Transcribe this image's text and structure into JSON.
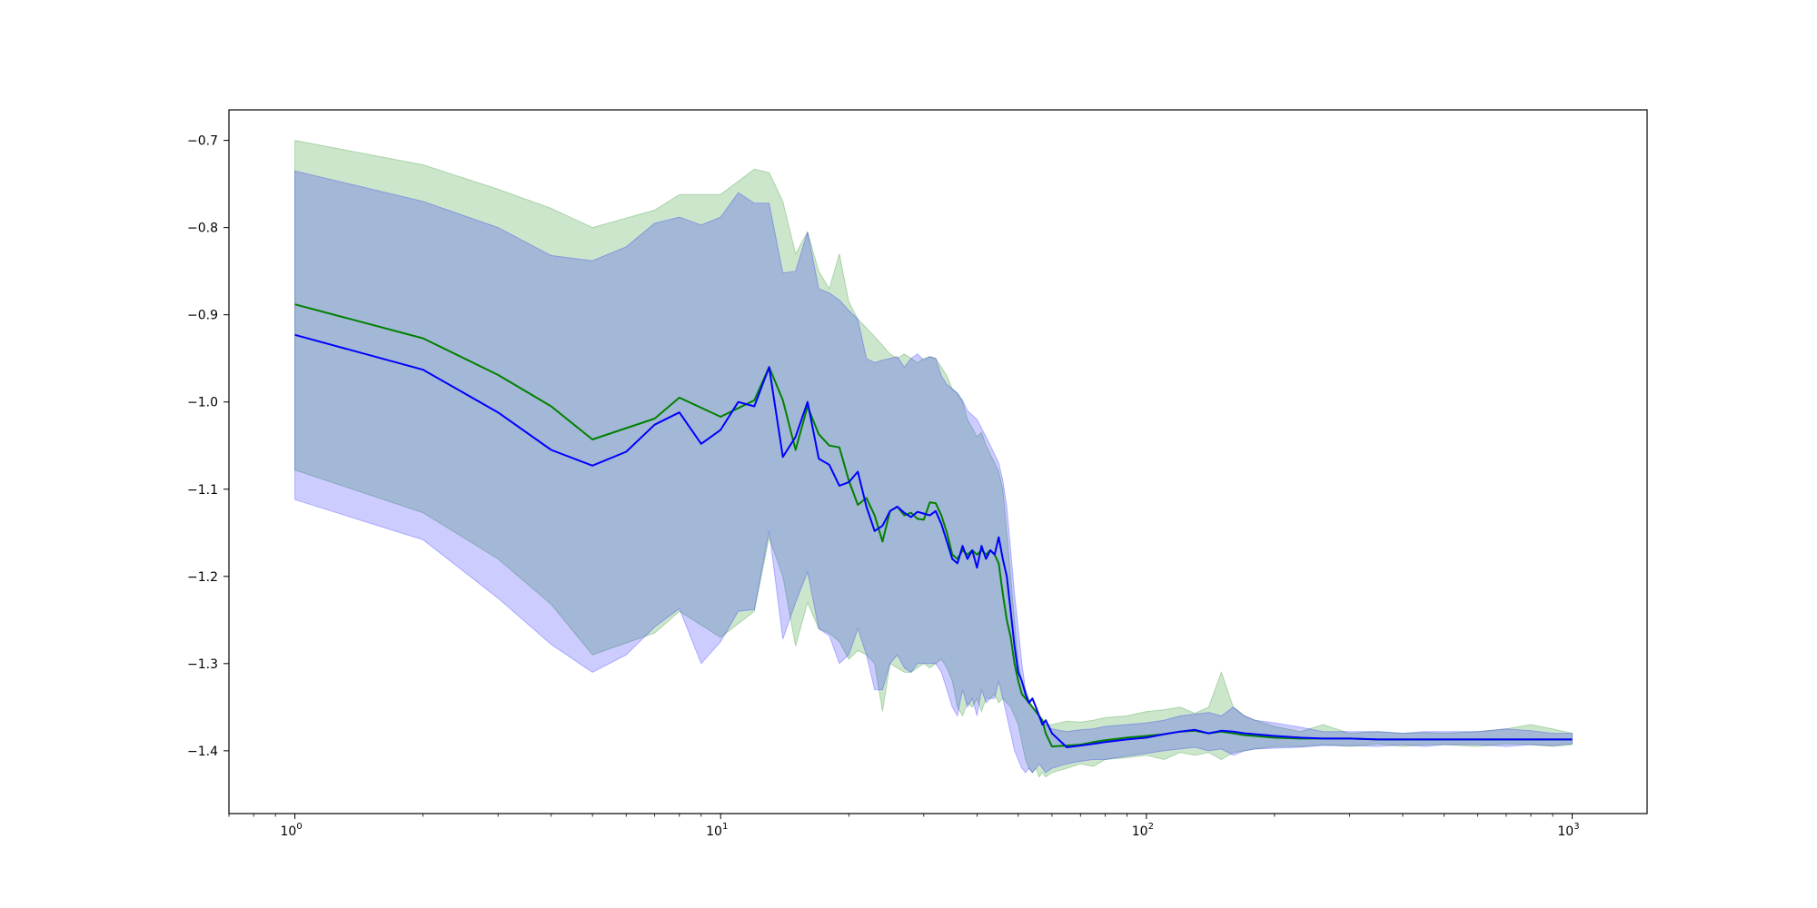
{
  "chart_data": {
    "type": "line",
    "title": "",
    "xlabel": "",
    "ylabel": "",
    "x_scale": "log",
    "xlim": [
      0.7,
      1500
    ],
    "ylim": [
      -1.472,
      -0.665
    ],
    "grid": false,
    "legend": "none",
    "x_ticks": [
      {
        "value": 1,
        "base": "10",
        "exp": "0"
      },
      {
        "value": 10,
        "base": "10",
        "exp": "1"
      },
      {
        "value": 100,
        "base": "10",
        "exp": "2"
      },
      {
        "value": 1000,
        "base": "10",
        "exp": "3"
      }
    ],
    "y_ticks": [
      {
        "value": -0.7,
        "label": "−0.7"
      },
      {
        "value": -0.8,
        "label": "−0.8"
      },
      {
        "value": -0.9,
        "label": "−0.9"
      },
      {
        "value": -1.0,
        "label": "−1.0"
      },
      {
        "value": -1.1,
        "label": "−1.1"
      },
      {
        "value": -1.2,
        "label": "−1.2"
      },
      {
        "value": -1.3,
        "label": "−1.3"
      },
      {
        "value": -1.4,
        "label": "−1.4"
      }
    ],
    "series": [
      {
        "color": "#008000",
        "band_color": "#008000",
        "band_opacity": 0.2,
        "x": [
          1,
          2,
          3,
          4,
          5,
          7,
          8,
          10,
          12,
          13,
          14,
          15,
          16,
          17,
          18,
          19,
          20,
          21,
          22,
          23,
          24,
          25,
          26,
          27,
          28,
          29,
          30,
          31,
          32,
          33,
          34,
          35,
          36,
          37,
          38,
          39,
          40,
          41,
          42,
          43,
          44,
          45,
          46,
          47,
          48,
          49,
          50,
          51,
          52,
          53,
          54,
          55,
          56,
          57,
          58,
          60,
          65,
          70,
          75,
          80,
          90,
          100,
          110,
          120,
          130,
          140,
          150,
          160,
          170,
          180,
          200,
          230,
          260,
          300,
          350,
          400,
          450,
          500,
          600,
          700,
          800,
          900,
          1000
        ],
        "y": [
          -0.888,
          -0.927,
          -0.969,
          -1.005,
          -1.043,
          -1.019,
          -0.995,
          -1.017,
          -0.998,
          -0.96,
          -0.998,
          -1.055,
          -1.005,
          -1.037,
          -1.05,
          -1.052,
          -1.09,
          -1.118,
          -1.11,
          -1.13,
          -1.16,
          -1.125,
          -1.12,
          -1.13,
          -1.127,
          -1.134,
          -1.135,
          -1.115,
          -1.116,
          -1.13,
          -1.15,
          -1.175,
          -1.18,
          -1.17,
          -1.175,
          -1.17,
          -1.175,
          -1.17,
          -1.175,
          -1.17,
          -1.175,
          -1.185,
          -1.22,
          -1.25,
          -1.27,
          -1.3,
          -1.32,
          -1.335,
          -1.34,
          -1.345,
          -1.35,
          -1.355,
          -1.36,
          -1.365,
          -1.38,
          -1.395,
          -1.394,
          -1.393,
          -1.39,
          -1.388,
          -1.385,
          -1.383,
          -1.381,
          -1.378,
          -1.377,
          -1.38,
          -1.378,
          -1.38,
          -1.382,
          -1.383,
          -1.385,
          -1.386,
          -1.386,
          -1.386,
          -1.387,
          -1.387,
          -1.387,
          -1.387,
          -1.387,
          -1.387,
          -1.387,
          -1.387,
          -1.387
        ],
        "upper": [
          -0.7,
          -0.728,
          -0.756,
          -0.778,
          -0.8,
          -0.78,
          -0.762,
          -0.762,
          -0.733,
          -0.737,
          -0.77,
          -0.83,
          -0.805,
          -0.85,
          -0.87,
          -0.83,
          -0.885,
          -0.905,
          -0.915,
          -0.925,
          -0.935,
          -0.945,
          -0.95,
          -0.945,
          -0.95,
          -0.955,
          -0.95,
          -0.948,
          -0.95,
          -0.96,
          -0.97,
          -0.985,
          -0.99,
          -1.0,
          -1.02,
          -1.03,
          -1.04,
          -1.035,
          -1.05,
          -1.06,
          -1.07,
          -1.08,
          -1.1,
          -1.15,
          -1.2,
          -1.25,
          -1.3,
          -1.32,
          -1.33,
          -1.34,
          -1.35,
          -1.355,
          -1.36,
          -1.365,
          -1.37,
          -1.37,
          -1.366,
          -1.367,
          -1.365,
          -1.362,
          -1.36,
          -1.355,
          -1.353,
          -1.35,
          -1.357,
          -1.35,
          -1.31,
          -1.35,
          -1.36,
          -1.365,
          -1.372,
          -1.378,
          -1.37,
          -1.38,
          -1.378,
          -1.38,
          -1.379,
          -1.38,
          -1.378,
          -1.375,
          -1.37,
          -1.375,
          -1.38
        ],
        "lower": [
          -1.078,
          -1.127,
          -1.18,
          -1.232,
          -1.29,
          -1.265,
          -1.24,
          -1.27,
          -1.24,
          -1.155,
          -1.2,
          -1.28,
          -1.23,
          -1.26,
          -1.265,
          -1.275,
          -1.295,
          -1.285,
          -1.29,
          -1.3,
          -1.355,
          -1.3,
          -1.305,
          -1.31,
          -1.31,
          -1.305,
          -1.3,
          -1.305,
          -1.3,
          -1.295,
          -1.305,
          -1.32,
          -1.35,
          -1.36,
          -1.345,
          -1.35,
          -1.34,
          -1.355,
          -1.34,
          -1.34,
          -1.335,
          -1.345,
          -1.34,
          -1.345,
          -1.35,
          -1.36,
          -1.37,
          -1.39,
          -1.41,
          -1.42,
          -1.425,
          -1.42,
          -1.43,
          -1.425,
          -1.43,
          -1.425,
          -1.42,
          -1.415,
          -1.418,
          -1.41,
          -1.408,
          -1.405,
          -1.41,
          -1.402,
          -1.405,
          -1.402,
          -1.41,
          -1.402,
          -1.4,
          -1.398,
          -1.395,
          -1.395,
          -1.393,
          -1.395,
          -1.392,
          -1.395,
          -1.393,
          -1.393,
          -1.395,
          -1.392,
          -1.393,
          -1.395,
          -1.393
        ]
      },
      {
        "color": "#0000ff",
        "band_color": "#0000ff",
        "band_opacity": 0.2,
        "x": [
          1,
          2,
          3,
          4,
          5,
          6,
          7,
          8,
          9,
          10,
          11,
          12,
          13,
          14,
          15,
          16,
          17,
          18,
          19,
          20,
          21,
          22,
          23,
          24,
          25,
          26,
          27,
          28,
          29,
          30,
          31,
          32,
          33,
          34,
          35,
          36,
          37,
          38,
          39,
          40,
          41,
          42,
          43,
          44,
          45,
          46,
          47,
          48,
          49,
          50,
          51,
          52,
          53,
          54,
          55,
          56,
          57,
          58,
          60,
          65,
          70,
          75,
          80,
          90,
          100,
          110,
          120,
          130,
          140,
          150,
          160,
          170,
          180,
          200,
          230,
          260,
          300,
          350,
          400,
          450,
          500,
          600,
          700,
          800,
          900,
          1000
        ],
        "y": [
          -0.923,
          -0.963,
          -1.012,
          -1.055,
          -1.073,
          -1.057,
          -1.026,
          -1.012,
          -1.048,
          -1.032,
          -1.0,
          -1.005,
          -0.96,
          -1.063,
          -1.04,
          -1.0,
          -1.065,
          -1.072,
          -1.096,
          -1.092,
          -1.08,
          -1.12,
          -1.148,
          -1.142,
          -1.125,
          -1.12,
          -1.127,
          -1.132,
          -1.126,
          -1.128,
          -1.13,
          -1.125,
          -1.14,
          -1.16,
          -1.18,
          -1.185,
          -1.165,
          -1.18,
          -1.17,
          -1.19,
          -1.165,
          -1.18,
          -1.17,
          -1.175,
          -1.155,
          -1.18,
          -1.2,
          -1.24,
          -1.28,
          -1.31,
          -1.32,
          -1.335,
          -1.345,
          -1.34,
          -1.35,
          -1.36,
          -1.37,
          -1.365,
          -1.38,
          -1.396,
          -1.394,
          -1.392,
          -1.39,
          -1.387,
          -1.385,
          -1.381,
          -1.378,
          -1.376,
          -1.38,
          -1.377,
          -1.378,
          -1.38,
          -1.381,
          -1.383,
          -1.385,
          -1.386,
          -1.386,
          -1.387,
          -1.387,
          -1.387,
          -1.387,
          -1.387,
          -1.387,
          -1.387,
          -1.387,
          -1.387
        ],
        "upper": [
          -0.735,
          -0.77,
          -0.8,
          -0.832,
          -0.838,
          -0.822,
          -0.795,
          -0.788,
          -0.797,
          -0.788,
          -0.76,
          -0.772,
          -0.772,
          -0.852,
          -0.85,
          -0.805,
          -0.87,
          -0.875,
          -0.883,
          -0.895,
          -0.905,
          -0.95,
          -0.955,
          -0.952,
          -0.95,
          -0.948,
          -0.96,
          -0.95,
          -0.945,
          -0.952,
          -0.948,
          -0.95,
          -0.97,
          -0.98,
          -0.985,
          -0.99,
          -0.998,
          -1.01,
          -1.015,
          -1.02,
          -1.03,
          -1.04,
          -1.05,
          -1.06,
          -1.07,
          -1.09,
          -1.12,
          -1.17,
          -1.22,
          -1.26,
          -1.3,
          -1.33,
          -1.345,
          -1.35,
          -1.355,
          -1.36,
          -1.365,
          -1.37,
          -1.375,
          -1.378,
          -1.376,
          -1.375,
          -1.372,
          -1.37,
          -1.368,
          -1.365,
          -1.36,
          -1.358,
          -1.356,
          -1.36,
          -1.35,
          -1.36,
          -1.365,
          -1.368,
          -1.373,
          -1.378,
          -1.378,
          -1.378,
          -1.38,
          -1.378,
          -1.378,
          -1.378,
          -1.375,
          -1.377,
          -1.38,
          -1.38
        ],
        "lower": [
          -1.112,
          -1.158,
          -1.225,
          -1.278,
          -1.31,
          -1.29,
          -1.258,
          -1.237,
          -1.3,
          -1.275,
          -1.24,
          -1.238,
          -1.148,
          -1.272,
          -1.23,
          -1.195,
          -1.26,
          -1.268,
          -1.3,
          -1.29,
          -1.26,
          -1.29,
          -1.33,
          -1.33,
          -1.3,
          -1.29,
          -1.305,
          -1.31,
          -1.3,
          -1.3,
          -1.3,
          -1.3,
          -1.31,
          -1.33,
          -1.35,
          -1.36,
          -1.33,
          -1.35,
          -1.34,
          -1.36,
          -1.33,
          -1.345,
          -1.34,
          -1.34,
          -1.32,
          -1.34,
          -1.36,
          -1.38,
          -1.4,
          -1.41,
          -1.42,
          -1.425,
          -1.42,
          -1.425,
          -1.42,
          -1.415,
          -1.42,
          -1.425,
          -1.42,
          -1.415,
          -1.412,
          -1.41,
          -1.41,
          -1.406,
          -1.403,
          -1.4,
          -1.398,
          -1.396,
          -1.4,
          -1.398,
          -1.405,
          -1.4,
          -1.398,
          -1.397,
          -1.396,
          -1.394,
          -1.394,
          -1.395,
          -1.393,
          -1.395,
          -1.393,
          -1.393,
          -1.395,
          -1.393,
          -1.394,
          -1.392
        ]
      }
    ]
  }
}
